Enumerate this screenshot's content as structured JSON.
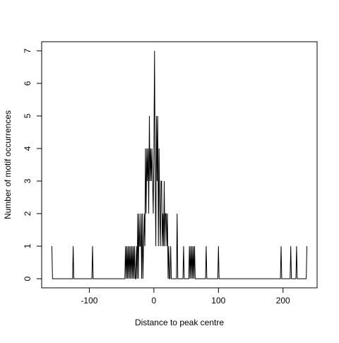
{
  "chart_data": {
    "type": "line",
    "xlabel": "Distance to peak centre",
    "ylabel": "Number of motif occurrences",
    "xlim": [
      -173.8,
      252.8
    ],
    "ylim": [
      -0.28,
      7.28
    ],
    "xticks": [
      -100,
      0,
      100,
      200
    ],
    "yticks": [
      0,
      1,
      2,
      3,
      4,
      5,
      6,
      7
    ],
    "color": "#000000",
    "x": [
      -158,
      -157,
      -126,
      -125,
      -124,
      -96,
      -95,
      -94,
      -45,
      -44,
      -43,
      -42,
      -41,
      -40,
      -39,
      -38,
      -37,
      -36,
      -35,
      -34,
      -33,
      -32,
      -31,
      -30,
      -29,
      -28,
      -27,
      -26,
      -25,
      -24,
      -23,
      -22,
      -21,
      -20,
      -19,
      -18,
      -17,
      -16,
      -15,
      -14,
      -13,
      -12,
      -11,
      -10,
      -9,
      -8,
      -7,
      -6,
      -5,
      -4,
      -3,
      -2,
      -1,
      0,
      1,
      2,
      3,
      4,
      5,
      6,
      7,
      8,
      9,
      10,
      11,
      12,
      13,
      14,
      15,
      16,
      17,
      18,
      19,
      20,
      21,
      22,
      23,
      24,
      25,
      26,
      27,
      28,
      35,
      36,
      37,
      45,
      46,
      47,
      54,
      55,
      56,
      57,
      58,
      59,
      60,
      61,
      62,
      63,
      64,
      80,
      81,
      82,
      99,
      100,
      101,
      196,
      197,
      198,
      211,
      212,
      213,
      220,
      221,
      222,
      236,
      237
    ],
    "values": [
      1,
      0,
      0,
      1,
      0,
      0,
      1,
      0,
      0,
      1,
      0,
      1,
      0,
      1,
      0,
      1,
      0,
      1,
      0,
      1,
      0,
      1,
      0,
      1,
      0,
      0,
      1,
      0,
      2,
      0,
      2,
      1,
      1,
      2,
      0,
      2,
      0,
      1,
      2,
      1,
      4,
      2,
      4,
      3,
      4,
      2,
      5,
      3,
      4,
      3,
      4,
      3,
      2,
      4,
      7,
      3,
      1,
      5,
      3,
      5,
      1,
      4,
      2,
      1,
      3,
      3,
      1,
      2,
      1,
      3,
      1,
      2,
      2,
      1,
      2,
      0,
      1,
      0,
      0,
      1,
      0,
      0,
      0,
      2,
      0,
      0,
      1,
      0,
      0,
      1,
      0,
      1,
      0,
      1,
      0,
      1,
      0,
      1,
      0,
      0,
      1,
      0,
      0,
      1,
      0,
      0,
      1,
      0,
      0,
      1,
      0,
      0,
      1,
      0,
      0,
      1
    ]
  }
}
